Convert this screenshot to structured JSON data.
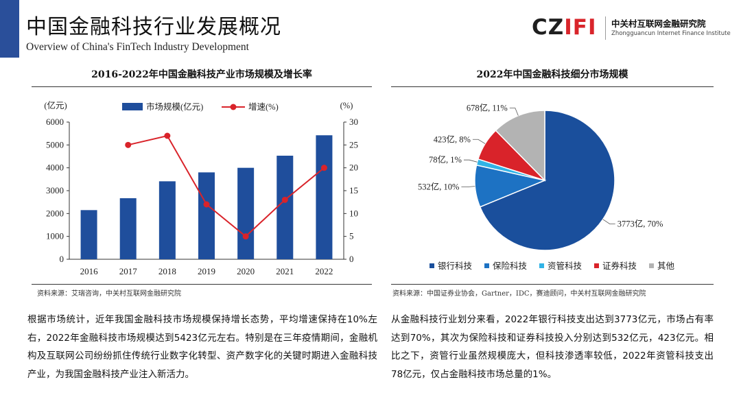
{
  "header": {
    "title_zh": "中国金融科技行业发展概况",
    "title_en": "Overview of China's FinTech Industry Development",
    "accent_color": "#2a4f9a"
  },
  "logo": {
    "mark_prefix": "CZ",
    "mark_suffix": "IFI",
    "org_zh": "中关村互联网金融研究院",
    "org_en": "Zhongguancun Internet Finance Institute"
  },
  "left_panel": {
    "title": "2016-2022年中国金融科技产业市场规模及增长率",
    "source": "资料来源：艾瑞咨询，中关村互联网金融研究院",
    "paragraph": "根据市场统计，近年我国金融科技市场规模保持增长态势，平均增速保持在10%左右，2022年金融科技市场规模达到5423亿元左右。特别是在三年疫情期间，金融机构及互联网公司纷纷抓住传统行业数字化转型、资产数字化的关键时期进入金融科技产业，为我国金融科技产业注入新活力。"
  },
  "right_panel": {
    "title": "2022年中国金融科技细分市场规模",
    "source": "资料来源：中国证券业协会，Gartner，IDC，赛迪顾问，中关村互联网金融研究院",
    "paragraph": "从金融科技行业划分来看，2022年银行科技支出达到3773亿元，市场占有率达到70%，其次为保险科技和证券科技投入分别达到532亿元，423亿元。相比之下，资管行业虽然规模庞大，但科技渗透率较低，2022年资管科技支出78亿元，仅占金融科技市场总量的1%。"
  },
  "chart_data": [
    {
      "type": "bar",
      "categories": [
        "2016",
        "2017",
        "2018",
        "2019",
        "2020",
        "2021",
        "2022"
      ],
      "series": [
        {
          "name": "市场规模(亿元)",
          "type": "bar",
          "axis": "left",
          "color": "#1f4e9c",
          "values": [
            2150,
            2670,
            3410,
            3800,
            4000,
            4530,
            5423
          ]
        },
        {
          "name": "增速(%)",
          "type": "line",
          "axis": "right",
          "color": "#d9232a",
          "values": [
            null,
            25,
            27,
            12,
            5,
            13,
            20
          ]
        }
      ],
      "y_left_label": "(亿元)",
      "y_right_label": "(%)",
      "ylim_left": [
        0,
        6000
      ],
      "y_ticks_left": [
        "0",
        "1000",
        "2000",
        "3000",
        "4000",
        "5000",
        "6000"
      ],
      "ylim_right": [
        0,
        30
      ],
      "y_ticks_right": [
        "0",
        "5",
        "10",
        "15",
        "20",
        "25",
        "30"
      ],
      "legend_position": "top-center",
      "grid": false
    },
    {
      "type": "pie",
      "slices": [
        {
          "name": "银行科技",
          "value": 3773,
          "label": "3773亿, 70%",
          "color": "#1a4f9c"
        },
        {
          "name": "保险科技",
          "value": 532,
          "label": "532亿, 10%",
          "color": "#1d72c3"
        },
        {
          "name": "资管科技",
          "value": 78,
          "label": "78亿, 1%",
          "color": "#31b3e6"
        },
        {
          "name": "证券科技",
          "value": 423,
          "label": "423亿, 8%",
          "color": "#d9232a"
        },
        {
          "name": "其他",
          "value": 678,
          "label": "678亿, 11%",
          "color": "#b3b3b3"
        }
      ],
      "legend_position": "bottom",
      "start": "12 o'clock",
      "direction": "clockwise"
    }
  ]
}
